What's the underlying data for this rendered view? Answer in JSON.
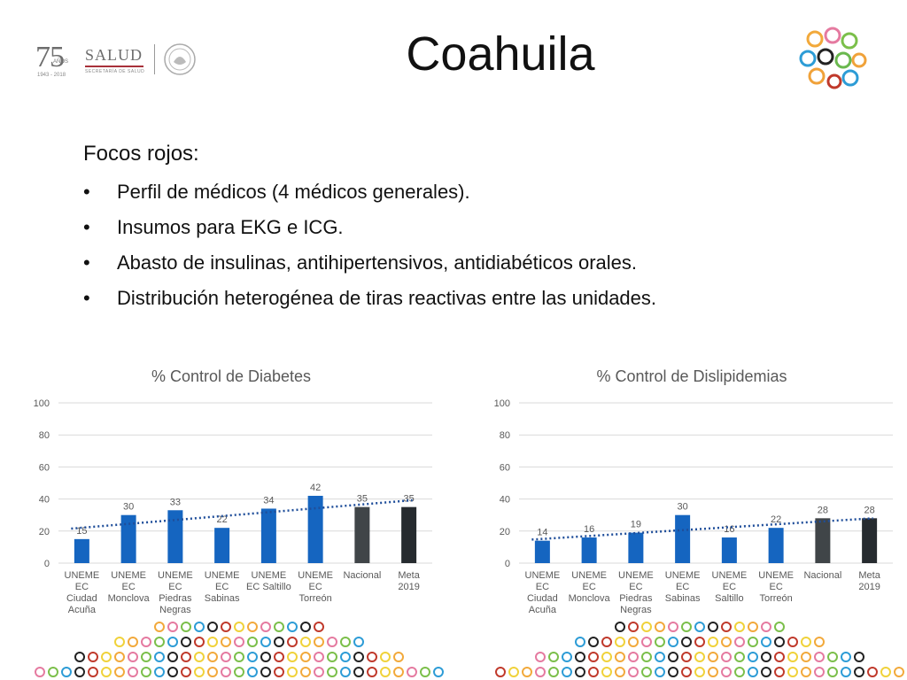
{
  "header": {
    "title": "Coahuila",
    "logo": {
      "number": "75",
      "anos": "AÑOS",
      "years": "1943 - 2018",
      "brand": "SALUD",
      "subtitle": "SECRETARÍA DE SALUD"
    }
  },
  "content": {
    "heading": "Focos rojos:",
    "bullet_char": "•",
    "bullets": [
      "Perfil de médicos (4 médicos generales).",
      "Insumos para EKG e ICG.",
      "Abasto de insulinas, antihipertensivos, antidiabéticos orales.",
      "Distribución heterogénea de tiras reactivas entre las unidades."
    ]
  },
  "colors": {
    "bar_blue": "#1565c0",
    "bar_nacional": "#404548",
    "bar_meta": "#262b2f",
    "trend": "#1f4e9a",
    "grid": "#d9d9d9",
    "text": "#595959"
  },
  "chart_data": [
    {
      "type": "bar",
      "title": "% Control de Diabetes",
      "categories": [
        "UNEME EC Ciudad Acuña",
        "UNEME EC Monclova",
        "UNEME EC Piedras Negras",
        "UNEME EC Sabinas",
        "UNEME EC Saltillo",
        "UNEME EC Torreón",
        "Nacional",
        "Meta 2019"
      ],
      "category_lines": [
        [
          "UNEME",
          "EC",
          "Ciudad",
          "Acuña"
        ],
        [
          "UNEME",
          "EC",
          "Monclova"
        ],
        [
          "UNEME",
          "EC",
          "Piedras",
          "Negras"
        ],
        [
          "UNEME",
          "EC",
          "Sabinas"
        ],
        [
          "UNEME",
          "EC Saltillo"
        ],
        [
          "UNEME",
          "EC",
          "Torreón"
        ],
        [
          "Nacional"
        ],
        [
          "Meta",
          "2019"
        ]
      ],
      "values": [
        15,
        30,
        33,
        22,
        34,
        42,
        35,
        35
      ],
      "data_labels": [
        "15",
        "30",
        "33",
        "22",
        "34",
        "42",
        "35",
        "35"
      ],
      "yticks": [
        "0",
        "20",
        "40",
        "60",
        "80",
        "100"
      ],
      "ylim": [
        0,
        100
      ],
      "grid": true,
      "trendline": "linear dotted"
    },
    {
      "type": "bar",
      "title": "% Control de Dislipidemias",
      "categories": [
        "UNEME EC Ciudad Acuña",
        "UNEME EC Monclova",
        "UNEME EC Piedras Negras",
        "UNEME EC Sabinas",
        "UNEME EC Saltillo",
        "UNEME EC Torreón",
        "Nacional",
        "Meta 2019"
      ],
      "category_lines": [
        [
          "UNEME",
          "EC",
          "Ciudad",
          "Acuña"
        ],
        [
          "UNEME",
          "EC",
          "Monclova"
        ],
        [
          "UNEME",
          "EC",
          "Piedras",
          "Negras"
        ],
        [
          "UNEME",
          "EC",
          "Sabinas"
        ],
        [
          "UNEME",
          "EC",
          "Saltillo"
        ],
        [
          "UNEME",
          "EC",
          "Torreón"
        ],
        [
          "Nacional"
        ],
        [
          "Meta",
          "2019"
        ]
      ],
      "values": [
        14,
        16,
        19,
        30,
        16,
        22,
        28,
        28
      ],
      "data_labels": [
        "14",
        "16",
        "19",
        "30",
        "16",
        "22",
        "28",
        "28"
      ],
      "yticks": [
        "0",
        "20",
        "40",
        "60",
        "80",
        "100"
      ],
      "ylim": [
        0,
        100
      ],
      "grid": true,
      "trendline": "linear dotted"
    }
  ]
}
